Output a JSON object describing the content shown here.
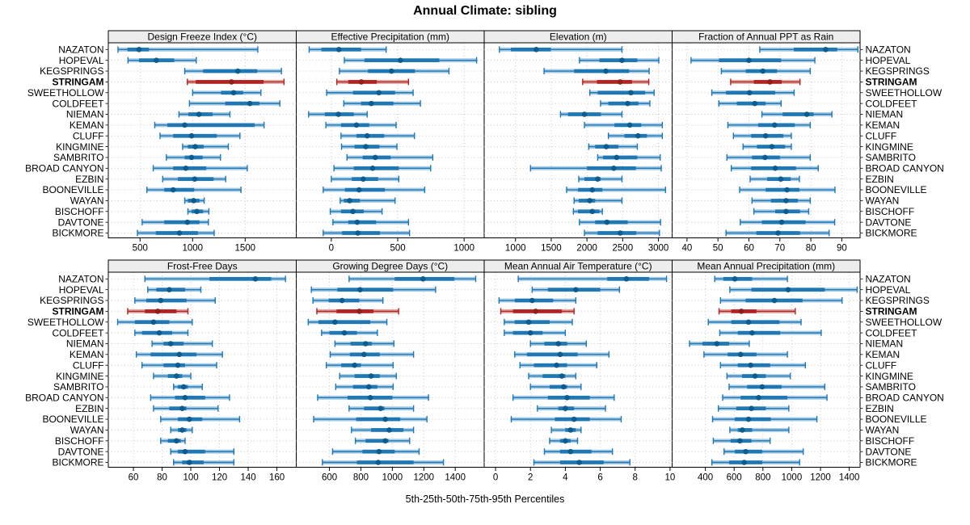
{
  "title": "Annual Climate: sibling",
  "caption": "5th-25th-50th-75th-95th Percentiles",
  "highlight_station": "STRINGAM",
  "colors": {
    "blue_main": "#1f77b4",
    "blue_pale": "#a9cce5",
    "blue_dot": "#0e5c8e",
    "red_main": "#b22222",
    "red_pale": "#dfa8a3",
    "red_dot": "#8f1f1a",
    "grid": "#c9c9c9",
    "strip_bg": "#ededed",
    "border": "#000000"
  },
  "chart_data": {
    "type": "dotplot-trellis",
    "title": "Annual Climate: sibling",
    "percentiles": [
      5,
      25,
      50,
      75,
      95
    ],
    "legend_note": "5th-25th-50th-75th-95th Percentiles",
    "stations": [
      "NAZATON",
      "HOPEVAL",
      "KEGSPRINGS",
      "STRINGAM",
      "SWEETHOLLOW",
      "COLDFEET",
      "NIEMAN",
      "KEMAN",
      "CLUFF",
      "KINGMINE",
      "SAMBRITO",
      "BROAD CANYON",
      "EZBIN",
      "BOONEVILLE",
      "WAYAN",
      "BISCHOFF",
      "DAVTONE",
      "BICKMORE"
    ],
    "panels": [
      {
        "title": "Design Freeze Index (°C)",
        "row": 0,
        "col": 0,
        "domain": [
          198,
          1986
        ],
        "ticks": [
          500,
          1000,
          1500
        ],
        "values": [
          [
            290,
            380,
            490,
            585,
            1620
          ],
          [
            385,
            490,
            655,
            825,
            1035
          ],
          [
            925,
            1100,
            1430,
            1615,
            1845
          ],
          [
            950,
            1030,
            1370,
            1675,
            1870
          ],
          [
            1000,
            1270,
            1390,
            1480,
            1650
          ],
          [
            970,
            1310,
            1545,
            1635,
            1830
          ],
          [
            870,
            960,
            1060,
            1190,
            1355
          ],
          [
            640,
            760,
            925,
            1590,
            1680
          ],
          [
            690,
            815,
            990,
            1230,
            1450
          ],
          [
            905,
            955,
            1025,
            1105,
            1340
          ],
          [
            750,
            925,
            990,
            1095,
            1265
          ],
          [
            625,
            815,
            935,
            1130,
            1520
          ],
          [
            715,
            860,
            1020,
            1200,
            1315
          ],
          [
            565,
            730,
            815,
            1015,
            1460
          ],
          [
            925,
            955,
            1010,
            1065,
            1110
          ],
          [
            955,
            990,
            1040,
            1100,
            1155
          ],
          [
            520,
            730,
            950,
            1065,
            1150
          ],
          [
            475,
            650,
            875,
            1050,
            1205
          ]
        ]
      },
      {
        "title": "Effective Precipitation (mm)",
        "row": 0,
        "col": 1,
        "domain": [
          -264,
          1151
        ],
        "ticks": [
          0,
          500,
          1000
        ],
        "values": [
          [
            -167,
            -75,
            57,
            224,
            413
          ],
          [
            98,
            250,
            520,
            813,
            1094
          ],
          [
            61,
            276,
            453,
            630,
            886
          ],
          [
            41,
            128,
            226,
            342,
            581
          ],
          [
            -35,
            163,
            358,
            480,
            616
          ],
          [
            94,
            224,
            301,
            468,
            671
          ],
          [
            -171,
            -49,
            53,
            169,
            270
          ],
          [
            -41,
            73,
            189,
            285,
            488
          ],
          [
            73,
            189,
            270,
            398,
            626
          ],
          [
            77,
            175,
            260,
            362,
            494
          ],
          [
            118,
            236,
            331,
            447,
            764
          ],
          [
            20,
            169,
            311,
            508,
            748
          ],
          [
            0,
            154,
            240,
            352,
            508
          ],
          [
            -61,
            102,
            209,
            403,
            703
          ],
          [
            67,
            94,
            138,
            215,
            480
          ],
          [
            -8,
            73,
            163,
            244,
            382
          ],
          [
            12,
            128,
            195,
            337,
            581
          ],
          [
            -61,
            81,
            199,
            366,
            589
          ]
        ]
      },
      {
        "title": "Elevation (m)",
        "row": 0,
        "col": 2,
        "domain": [
          562,
          3192
        ],
        "ticks": [
          1000,
          1500,
          2000,
          2500,
          3000
        ],
        "values": [
          [
            775,
            935,
            1290,
            1495,
            2490
          ],
          [
            1895,
            2175,
            2490,
            2705,
            3005
          ],
          [
            1400,
            1820,
            2265,
            2590,
            2870
          ],
          [
            1940,
            2140,
            2465,
            2630,
            2865
          ],
          [
            2040,
            2150,
            2615,
            2815,
            2940
          ],
          [
            2190,
            2300,
            2570,
            2720,
            2880
          ],
          [
            1630,
            1735,
            1965,
            2195,
            2490
          ],
          [
            1965,
            2385,
            2600,
            2760,
            3055
          ],
          [
            2300,
            2525,
            2715,
            2840,
            3055
          ],
          [
            2025,
            2115,
            2270,
            2440,
            2705
          ],
          [
            2150,
            2225,
            2415,
            2705,
            3025
          ],
          [
            1210,
            2000,
            2375,
            2685,
            3040
          ],
          [
            1885,
            1965,
            2150,
            2190,
            2490
          ],
          [
            1715,
            1875,
            2075,
            2215,
            3100
          ],
          [
            1820,
            1885,
            2040,
            2115,
            2490
          ],
          [
            1810,
            1875,
            2075,
            2175,
            2215
          ],
          [
            1895,
            2115,
            2280,
            2570,
            3030
          ],
          [
            1965,
            2150,
            2465,
            2690,
            3015
          ]
        ]
      },
      {
        "title": "Fraction of Annual PPT as Rain",
        "row": 0,
        "col": 3,
        "domain": [
          35.2,
          95.9
        ],
        "ticks": [
          40,
          50,
          60,
          70,
          80,
          90
        ],
        "values": [
          [
            63.5,
            74.5,
            84.8,
            88.5,
            95.2
          ],
          [
            41.3,
            50.3,
            60.0,
            70.4,
            81.3
          ],
          [
            51.1,
            59.0,
            64.5,
            69.1,
            79.8
          ],
          [
            54.1,
            61.6,
            66.8,
            70.6,
            76.5
          ],
          [
            48.0,
            52.6,
            60.2,
            68.5,
            74.6
          ],
          [
            50.3,
            56.1,
            61.9,
            65.4,
            70.4
          ],
          [
            64.2,
            70.9,
            78.7,
            80.9,
            86.8
          ],
          [
            53.2,
            63.0,
            68.3,
            74.8,
            79.8
          ],
          [
            55.0,
            60.7,
            65.4,
            71.1,
            73.7
          ],
          [
            58.1,
            62.6,
            67.4,
            71.7,
            73.7
          ],
          [
            52.9,
            61.0,
            65.2,
            70.0,
            79.8
          ],
          [
            54.3,
            60.7,
            68.5,
            75.2,
            82.4
          ],
          [
            60.4,
            65.9,
            70.3,
            73.5,
            76.3
          ],
          [
            57.0,
            65.4,
            72.3,
            76.3,
            87.8
          ],
          [
            61.0,
            67.1,
            72.0,
            75.8,
            79.8
          ],
          [
            61.6,
            68.5,
            72.0,
            76.5,
            79.3
          ],
          [
            57.2,
            64.2,
            70.6,
            78.3,
            87.7
          ],
          [
            52.6,
            62.4,
            69.4,
            76.5,
            85.9
          ]
        ]
      },
      {
        "title": "Frost-Free Days",
        "row": 1,
        "col": 0,
        "domain": [
          42.5,
          173.5
        ],
        "ticks": [
          60,
          80,
          100,
          120,
          140,
          160
        ],
        "values": [
          [
            68,
            113,
            145,
            156,
            166
          ],
          [
            70,
            76,
            85,
            96,
            107
          ],
          [
            61,
            69,
            79,
            97,
            117
          ],
          [
            56,
            68,
            77,
            90,
            98
          ],
          [
            49,
            61,
            74,
            85,
            101
          ],
          [
            61,
            66,
            78,
            87,
            98
          ],
          [
            73,
            81,
            86,
            95,
            115
          ],
          [
            62,
            72,
            92,
            104,
            122
          ],
          [
            66,
            81,
            91,
            96,
            118
          ],
          [
            74,
            84,
            90,
            94,
            100
          ],
          [
            88,
            91,
            95,
            98,
            108
          ],
          [
            72,
            89,
            96,
            110,
            127
          ],
          [
            74,
            85,
            94,
            97,
            119
          ],
          [
            79,
            91,
            99,
            108,
            134
          ],
          [
            86,
            91,
            94,
            97,
            101
          ],
          [
            79,
            84,
            90,
            93,
            96
          ],
          [
            86,
            91,
            96,
            110,
            130
          ],
          [
            88,
            94,
            99,
            109,
            130
          ]
        ]
      },
      {
        "title": "Growing Degree Days (°C)",
        "row": 1,
        "col": 1,
        "domain": [
          389,
          1584
        ],
        "ticks": [
          600,
          800,
          1000,
          1200,
          1400
        ],
        "values": [
          [
            725,
            1015,
            1195,
            1395,
            1530
          ],
          [
            485,
            650,
            795,
            1005,
            1275
          ],
          [
            495,
            595,
            680,
            790,
            940
          ],
          [
            520,
            645,
            790,
            880,
            1040
          ],
          [
            465,
            530,
            635,
            860,
            965
          ],
          [
            550,
            600,
            695,
            775,
            905
          ],
          [
            635,
            735,
            830,
            870,
            1010
          ],
          [
            605,
            730,
            820,
            920,
            1135
          ],
          [
            580,
            675,
            760,
            800,
            1005
          ],
          [
            665,
            760,
            865,
            920,
            1025
          ],
          [
            640,
            750,
            850,
            905,
            1005
          ],
          [
            525,
            715,
            860,
            1000,
            1230
          ],
          [
            725,
            820,
            925,
            950,
            1135
          ],
          [
            500,
            770,
            955,
            1050,
            1220
          ],
          [
            740,
            865,
            980,
            1070,
            1135
          ],
          [
            765,
            830,
            955,
            975,
            1110
          ],
          [
            620,
            810,
            915,
            1015,
            1170
          ],
          [
            555,
            775,
            910,
            1135,
            1325
          ]
        ]
      },
      {
        "title": "Mean Annual Air Temperature (°C)",
        "row": 1,
        "col": 2,
        "domain": [
          -0.65,
          10.12
        ],
        "ticks": [
          0,
          2,
          4,
          6,
          8,
          10
        ],
        "values": [
          [
            1.3,
            6.4,
            7.5,
            8.8,
            9.8
          ],
          [
            2.1,
            3.0,
            4.6,
            6.0,
            7.1
          ],
          [
            0.2,
            1.1,
            2.1,
            3.3,
            4.6
          ],
          [
            0.3,
            1.0,
            2.3,
            3.8,
            4.5
          ],
          [
            0.5,
            1.1,
            1.9,
            3.1,
            4.4
          ],
          [
            0.5,
            1.0,
            2.0,
            2.7,
            4.0
          ],
          [
            2.0,
            2.8,
            3.6,
            4.1,
            5.2
          ],
          [
            1.1,
            1.8,
            3.7,
            4.7,
            6.5
          ],
          [
            1.4,
            2.2,
            3.5,
            4.1,
            5.8
          ],
          [
            1.9,
            2.7,
            3.8,
            4.0,
            4.6
          ],
          [
            2.0,
            3.1,
            3.9,
            4.1,
            4.9
          ],
          [
            1.0,
            3.0,
            4.1,
            5.4,
            6.8
          ],
          [
            2.4,
            3.6,
            4.0,
            4.5,
            6.3
          ],
          [
            0.9,
            3.4,
            4.5,
            5.4,
            7.2
          ],
          [
            3.2,
            4.0,
            4.3,
            4.6,
            4.9
          ],
          [
            3.1,
            3.7,
            4.0,
            4.3,
            4.7
          ],
          [
            2.8,
            3.7,
            4.3,
            5.5,
            6.7
          ],
          [
            2.2,
            3.7,
            4.8,
            6.2,
            7.7
          ]
        ]
      },
      {
        "title": "Mean Annual Precipitation (mm)",
        "row": 1,
        "col": 3,
        "domain": [
          169,
          1475
        ],
        "ticks": [
          400,
          600,
          800,
          1000,
          1200,
          1400
        ],
        "values": [
          [
            465,
            525,
            605,
            725,
            970
          ],
          [
            570,
            720,
            975,
            1230,
            1455
          ],
          [
            505,
            680,
            880,
            1075,
            1350
          ],
          [
            495,
            580,
            650,
            755,
            1025
          ],
          [
            420,
            580,
            700,
            915,
            1065
          ],
          [
            500,
            625,
            725,
            920,
            1205
          ],
          [
            290,
            380,
            480,
            565,
            705
          ],
          [
            390,
            555,
            645,
            755,
            970
          ],
          [
            505,
            625,
            715,
            850,
            1095
          ],
          [
            550,
            655,
            745,
            820,
            990
          ],
          [
            565,
            690,
            795,
            930,
            1230
          ],
          [
            520,
            645,
            770,
            970,
            1245
          ],
          [
            490,
            615,
            720,
            820,
            980
          ],
          [
            450,
            605,
            700,
            855,
            1175
          ],
          [
            570,
            625,
            657,
            725,
            980
          ],
          [
            455,
            575,
            640,
            720,
            850
          ],
          [
            530,
            605,
            680,
            795,
            1080
          ],
          [
            445,
            565,
            670,
            795,
            1055
          ]
        ]
      }
    ]
  }
}
